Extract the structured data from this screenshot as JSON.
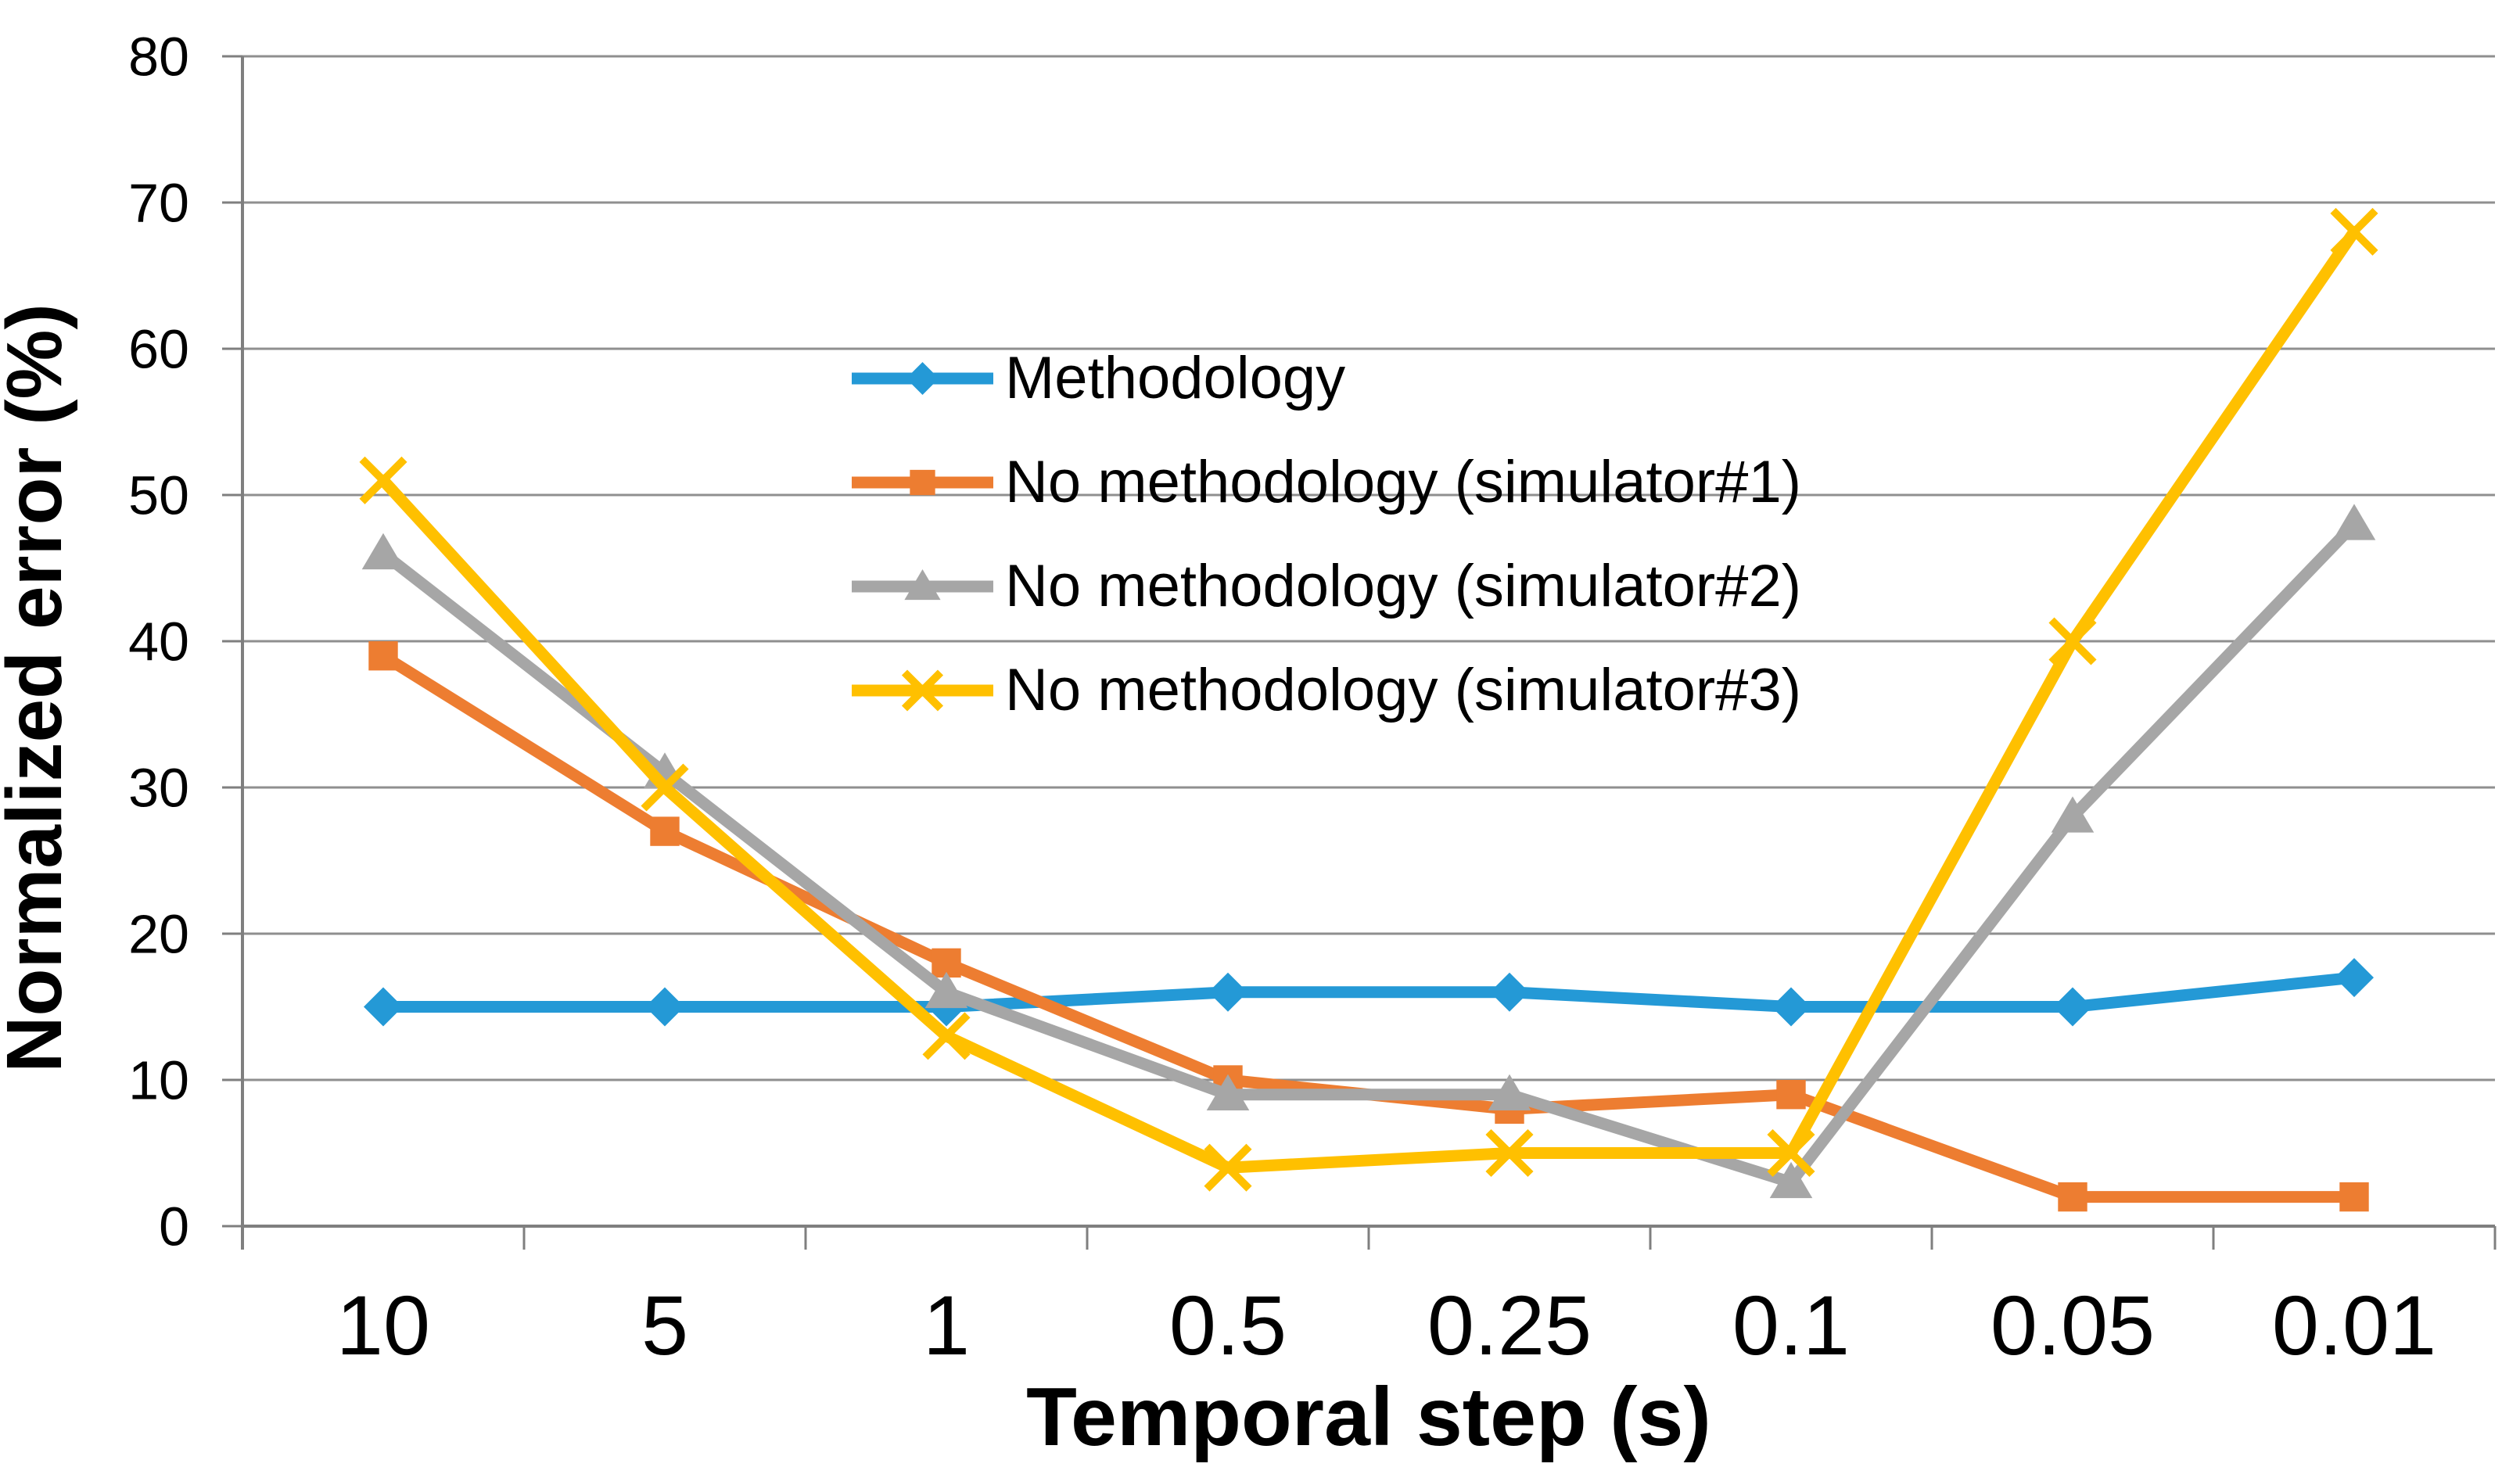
{
  "chart_data": {
    "type": "line",
    "title": "",
    "xlabel": "Temporal step (s)",
    "ylabel": "Normalized error (%)",
    "categories": [
      "10",
      "5",
      "1",
      "0.5",
      "0.25",
      "0.1",
      "0.05",
      "0.01"
    ],
    "y_ticks": [
      0,
      10,
      20,
      30,
      40,
      50,
      60,
      70,
      80
    ],
    "ylim": [
      0,
      80
    ],
    "grid": "horizontal",
    "legend_position": "inside-upper-center",
    "colors": {
      "gridline": "#8F8F8F",
      "axis": "#7F7F7F",
      "text": "#000000"
    },
    "series": [
      {
        "name": "Methodology",
        "color": "#2499D6",
        "marker": "diamond",
        "values": [
          15,
          15,
          15,
          16,
          16,
          15,
          15,
          17
        ]
      },
      {
        "name": "No methodology (simulator#1)",
        "color": "#ED7D31",
        "marker": "square",
        "values": [
          39,
          27,
          18,
          10,
          8,
          9,
          2,
          2
        ]
      },
      {
        "name": "No methodology (simulator#2)",
        "color": "#A6A6A6",
        "marker": "triangle",
        "values": [
          46,
          31,
          16,
          9,
          9,
          3,
          28,
          48
        ]
      },
      {
        "name": "No methodology (simulator#3)",
        "color": "#FFC000",
        "marker": "x",
        "values": [
          51,
          30,
          13,
          4,
          5,
          5,
          40,
          68
        ]
      }
    ]
  }
}
